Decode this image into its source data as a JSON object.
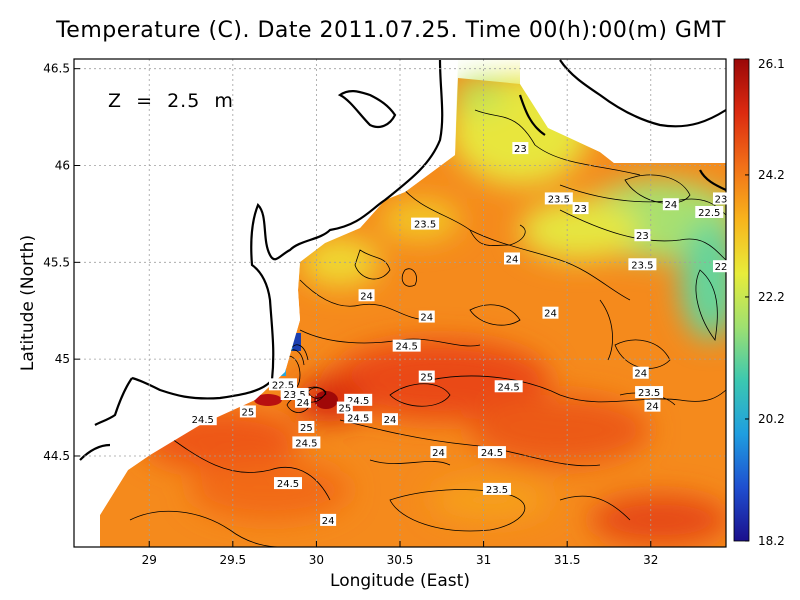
{
  "chart_data": {
    "type": "heatmap",
    "title": "Temperature (C). Date 2011.07.25. Time 00(h):00(m) GMT",
    "annotation": "Z  =  2.5  m",
    "xlabel": "Longitude (East)",
    "ylabel": "Latitude (North)",
    "xlim": [
      28.55,
      32.45
    ],
    "ylim": [
      44.03,
      46.55
    ],
    "x_ticks": [
      29,
      29.5,
      30,
      30.5,
      31,
      31.5,
      32
    ],
    "y_ticks": [
      44.5,
      45,
      45.5,
      46,
      46.5
    ],
    "grid": true,
    "colorbar": {
      "position": "right",
      "min": 18.2,
      "max": 26.1,
      "ticks": [
        18.2,
        20.2,
        22.2,
        24.2,
        26.1
      ],
      "colors": [
        "#1b0f8c",
        "#1f4fd0",
        "#1f9ee0",
        "#3cc8b0",
        "#9fe070",
        "#e8ec3a",
        "#f8b41c",
        "#f27018",
        "#dc2a10",
        "#9a0808"
      ]
    },
    "contour_labels": [
      {
        "x": 31.22,
        "y": 46.09,
        "value": "23"
      },
      {
        "x": 31.45,
        "y": 45.83,
        "value": "23.5"
      },
      {
        "x": 31.58,
        "y": 45.78,
        "value": "23"
      },
      {
        "x": 32.12,
        "y": 45.8,
        "value": "24"
      },
      {
        "x": 32.42,
        "y": 45.83,
        "value": "23"
      },
      {
        "x": 32.35,
        "y": 45.76,
        "value": "22.5"
      },
      {
        "x": 31.95,
        "y": 45.64,
        "value": "23"
      },
      {
        "x": 32.42,
        "y": 45.48,
        "value": "22"
      },
      {
        "x": 31.95,
        "y": 45.49,
        "value": "23.5"
      },
      {
        "x": 30.65,
        "y": 45.7,
        "value": "23.5"
      },
      {
        "x": 31.17,
        "y": 45.52,
        "value": "24"
      },
      {
        "x": 30.3,
        "y": 45.33,
        "value": "24"
      },
      {
        "x": 30.66,
        "y": 45.22,
        "value": "24"
      },
      {
        "x": 31.4,
        "y": 45.24,
        "value": "24"
      },
      {
        "x": 30.54,
        "y": 45.07,
        "value": "24.5"
      },
      {
        "x": 30.66,
        "y": 44.91,
        "value": "25"
      },
      {
        "x": 31.15,
        "y": 44.86,
        "value": "24.5"
      },
      {
        "x": 31.94,
        "y": 44.93,
        "value": "24"
      },
      {
        "x": 31.99,
        "y": 44.83,
        "value": "23.5"
      },
      {
        "x": 32.01,
        "y": 44.76,
        "value": "24"
      },
      {
        "x": 29.8,
        "y": 44.87,
        "value": "22.5"
      },
      {
        "x": 29.87,
        "y": 44.82,
        "value": "23.5"
      },
      {
        "x": 29.92,
        "y": 44.78,
        "value": "24"
      },
      {
        "x": 30.25,
        "y": 44.79,
        "value": "24.5"
      },
      {
        "x": 30.17,
        "y": 44.75,
        "value": "25"
      },
      {
        "x": 30.25,
        "y": 44.7,
        "value": "24.5"
      },
      {
        "x": 30.44,
        "y": 44.69,
        "value": "24"
      },
      {
        "x": 29.59,
        "y": 44.73,
        "value": "25"
      },
      {
        "x": 29.32,
        "y": 44.69,
        "value": "24.5"
      },
      {
        "x": 29.94,
        "y": 44.65,
        "value": "25"
      },
      {
        "x": 29.94,
        "y": 44.57,
        "value": "24.5"
      },
      {
        "x": 30.73,
        "y": 44.52,
        "value": "24"
      },
      {
        "x": 31.05,
        "y": 44.52,
        "value": "24.5"
      },
      {
        "x": 29.83,
        "y": 44.36,
        "value": "24.5"
      },
      {
        "x": 31.08,
        "y": 44.33,
        "value": "23.5"
      },
      {
        "x": 30.07,
        "y": 44.17,
        "value": "24"
      }
    ]
  }
}
